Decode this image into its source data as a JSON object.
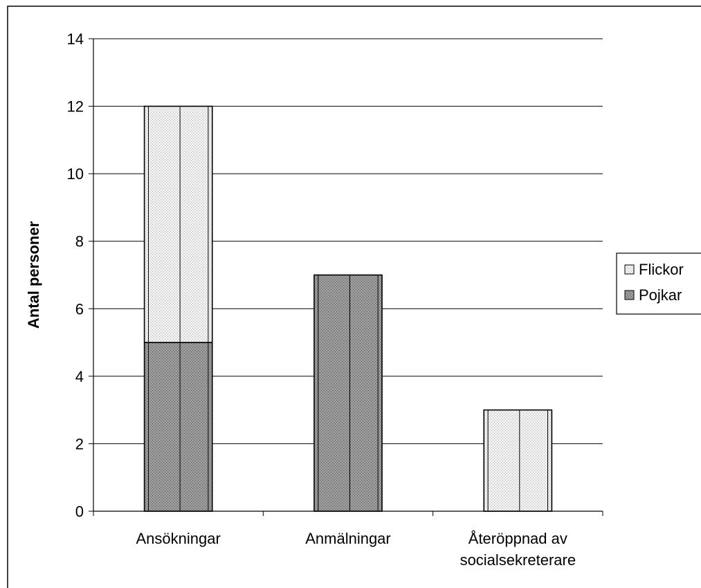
{
  "chart_data": {
    "type": "bar",
    "stacked": true,
    "categories": [
      [
        "Ansökningar"
      ],
      [
        "Anmälningar"
      ],
      [
        "Återöppnad av",
        "socialsekreterare"
      ]
    ],
    "series": [
      {
        "name": "Pojkar",
        "values": [
          5,
          7,
          0
        ],
        "color": "#8c8c8c",
        "pattern": "dark-dots"
      },
      {
        "name": "Flickor",
        "values": [
          7,
          0,
          3
        ],
        "color": "#e6e6e6",
        "pattern": "light-dots"
      }
    ],
    "title": "",
    "xlabel": "",
    "ylabel": "Antal personer",
    "ylim": [
      0,
      14
    ],
    "yticks": [
      0,
      2,
      4,
      6,
      8,
      10,
      12,
      14
    ],
    "grid": true,
    "legend": {
      "placement": "right",
      "order": [
        "Flickor",
        "Pojkar"
      ]
    }
  }
}
